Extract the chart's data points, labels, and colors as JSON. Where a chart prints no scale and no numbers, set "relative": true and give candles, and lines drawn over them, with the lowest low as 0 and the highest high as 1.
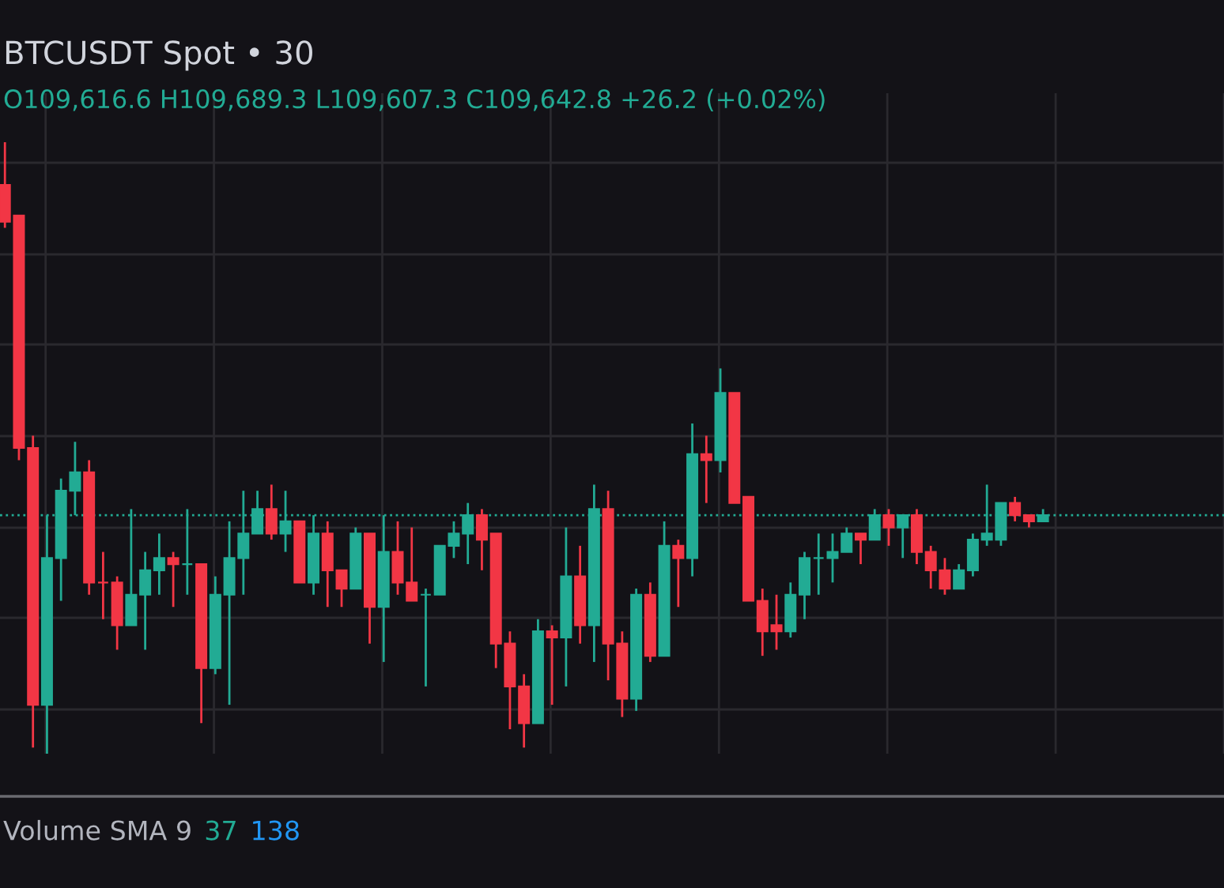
{
  "chart_data": {
    "type": "candlestick",
    "title": "BTCUSDT Spot • 30",
    "subtitle": "O109,616.6 H109,689.3 L109,607.3 C109,642.8 +26.2 (+0.02%)",
    "relative": true,
    "grid": true,
    "categories": [
      null,
      null,
      null,
      null,
      null,
      null,
      null,
      null,
      null,
      null,
      null,
      null,
      null,
      null,
      null,
      null,
      null,
      null,
      null,
      null,
      null,
      null,
      null,
      null,
      null,
      null,
      null,
      null,
      null,
      null,
      null,
      null,
      null,
      null,
      null,
      null,
      null,
      null,
      null,
      null,
      null,
      null,
      null,
      null,
      null,
      null,
      null,
      null,
      null,
      null,
      null,
      null,
      null,
      null,
      null,
      null,
      null,
      null,
      null,
      null,
      null,
      null,
      null,
      null,
      null,
      null,
      null,
      null,
      null,
      null,
      null,
      null,
      null,
      null,
      null
    ],
    "colors": [
      "#f23645",
      "#f23645",
      "#f23645",
      "#22ab94",
      "#22ab94",
      "#22ab94",
      "#f23645",
      "#f23645",
      "#f23645",
      "#22ab94",
      "#22ab94",
      "#22ab94",
      "#f23645",
      "#22ab94",
      "#f23645",
      "#22ab94",
      "#22ab94",
      "#22ab94",
      "#22ab94",
      "#f23645",
      "#22ab94",
      "#f23645",
      "#22ab94",
      "#f23645",
      "#f23645",
      "#22ab94",
      "#f23645",
      "#22ab94",
      "#f23645",
      "#f23645",
      "#22ab94",
      "#22ab94",
      "#22ab94",
      "#22ab94",
      "#f23645",
      "#f23645",
      "#f23645",
      "#f23645",
      "#22ab94",
      "#f23645",
      "#22ab94",
      "#f23645",
      "#22ab94",
      "#f23645",
      "#f23645",
      "#22ab94",
      "#f23645",
      "#22ab94",
      "#f23645",
      "#22ab94",
      "#f23645",
      "#22ab94",
      "#f23645",
      "#f23645",
      "#f23645",
      "#f23645",
      "#22ab94",
      "#22ab94",
      "#22ab94",
      "#22ab94",
      "#22ab94",
      "#f23645",
      "#22ab94",
      "#f23645",
      "#22ab94",
      "#f23645",
      "#f23645",
      "#f23645",
      "#22ab94",
      "#22ab94",
      "#22ab94",
      "#22ab94",
      "#f23645",
      "#f23645",
      "#22ab94"
    ],
    "ohlc": [
      [
        0.93,
        1.0,
        0.86,
        0.87
      ],
      [
        0.88,
        0.88,
        0.48,
        0.5
      ],
      [
        0.5,
        0.52,
        0.01,
        0.08
      ],
      [
        0.08,
        0.39,
        0.0,
        0.32
      ],
      [
        0.32,
        0.45,
        0.25,
        0.43
      ],
      [
        0.43,
        0.51,
        0.39,
        0.46
      ],
      [
        0.46,
        0.48,
        0.26,
        0.28
      ],
      [
        0.28,
        0.33,
        0.22,
        0.28
      ],
      [
        0.28,
        0.29,
        0.17,
        0.21
      ],
      [
        0.21,
        0.4,
        0.21,
        0.26
      ],
      [
        0.26,
        0.33,
        0.17,
        0.3
      ],
      [
        0.3,
        0.36,
        0.26,
        0.32
      ],
      [
        0.32,
        0.33,
        0.24,
        0.31
      ],
      [
        0.31,
        0.4,
        0.26,
        0.31
      ],
      [
        0.31,
        0.31,
        0.05,
        0.14
      ],
      [
        0.14,
        0.29,
        0.13,
        0.26
      ],
      [
        0.26,
        0.38,
        0.08,
        0.32
      ],
      [
        0.32,
        0.43,
        0.26,
        0.36
      ],
      [
        0.36,
        0.43,
        0.36,
        0.4
      ],
      [
        0.4,
        0.44,
        0.35,
        0.36
      ],
      [
        0.36,
        0.43,
        0.33,
        0.38
      ],
      [
        0.38,
        0.38,
        0.28,
        0.28
      ],
      [
        0.28,
        0.39,
        0.26,
        0.36
      ],
      [
        0.36,
        0.38,
        0.24,
        0.3
      ],
      [
        0.3,
        0.3,
        0.24,
        0.27
      ],
      [
        0.27,
        0.37,
        0.27,
        0.36
      ],
      [
        0.36,
        0.36,
        0.18,
        0.24
      ],
      [
        0.24,
        0.39,
        0.15,
        0.33
      ],
      [
        0.33,
        0.38,
        0.26,
        0.28
      ],
      [
        0.28,
        0.37,
        0.25,
        0.25
      ],
      [
        0.26,
        0.27,
        0.11,
        0.26
      ],
      [
        0.26,
        0.34,
        0.26,
        0.34
      ],
      [
        0.34,
        0.38,
        0.32,
        0.36
      ],
      [
        0.36,
        0.41,
        0.31,
        0.39
      ],
      [
        0.39,
        0.4,
        0.3,
        0.35
      ],
      [
        0.36,
        0.36,
        0.14,
        0.18
      ],
      [
        0.18,
        0.2,
        0.04,
        0.11
      ],
      [
        0.11,
        0.13,
        0.01,
        0.05
      ],
      [
        0.05,
        0.22,
        0.05,
        0.2
      ],
      [
        0.2,
        0.21,
        0.08,
        0.19
      ],
      [
        0.19,
        0.37,
        0.11,
        0.29
      ],
      [
        0.29,
        0.34,
        0.18,
        0.21
      ],
      [
        0.21,
        0.44,
        0.15,
        0.4
      ],
      [
        0.4,
        0.43,
        0.12,
        0.18
      ],
      [
        0.18,
        0.2,
        0.06,
        0.09
      ],
      [
        0.09,
        0.27,
        0.07,
        0.26
      ],
      [
        0.26,
        0.28,
        0.15,
        0.16
      ],
      [
        0.16,
        0.38,
        0.16,
        0.34
      ],
      [
        0.34,
        0.35,
        0.24,
        0.32
      ],
      [
        0.32,
        0.54,
        0.29,
        0.49
      ],
      [
        0.49,
        0.52,
        0.41,
        0.48
      ],
      [
        0.48,
        0.63,
        0.46,
        0.59
      ],
      [
        0.59,
        0.59,
        0.41,
        0.41
      ],
      [
        0.42,
        0.42,
        0.25,
        0.25
      ],
      [
        0.25,
        0.27,
        0.16,
        0.2
      ],
      [
        0.21,
        0.26,
        0.17,
        0.2
      ],
      [
        0.2,
        0.28,
        0.19,
        0.26
      ],
      [
        0.26,
        0.33,
        0.22,
        0.32
      ],
      [
        0.32,
        0.36,
        0.26,
        0.32
      ],
      [
        0.32,
        0.36,
        0.28,
        0.33
      ],
      [
        0.33,
        0.37,
        0.33,
        0.36
      ],
      [
        0.36,
        0.36,
        0.31,
        0.35
      ],
      [
        0.35,
        0.4,
        0.35,
        0.39
      ],
      [
        0.39,
        0.4,
        0.34,
        0.37
      ],
      [
        0.37,
        0.39,
        0.32,
        0.39
      ],
      [
        0.39,
        0.4,
        0.31,
        0.33
      ],
      [
        0.33,
        0.34,
        0.27,
        0.3
      ],
      [
        0.3,
        0.32,
        0.26,
        0.27
      ],
      [
        0.27,
        0.31,
        0.27,
        0.3
      ],
      [
        0.3,
        0.36,
        0.29,
        0.35
      ],
      [
        0.35,
        0.44,
        0.34,
        0.36
      ],
      [
        0.35,
        0.41,
        0.34,
        0.41
      ],
      [
        0.41,
        0.42,
        0.38,
        0.39
      ],
      [
        0.39,
        0.39,
        0.37,
        0.38
      ],
      [
        0.38,
        0.4,
        0.38,
        0.39
      ]
    ],
    "ref_lines": [
      {
        "axis": "y",
        "value": 0.39,
        "color": "#22ab94",
        "line_style": "dotted"
      }
    ],
    "annotations": [
      "Volume SMA 9",
      "37",
      "138"
    ]
  }
}
